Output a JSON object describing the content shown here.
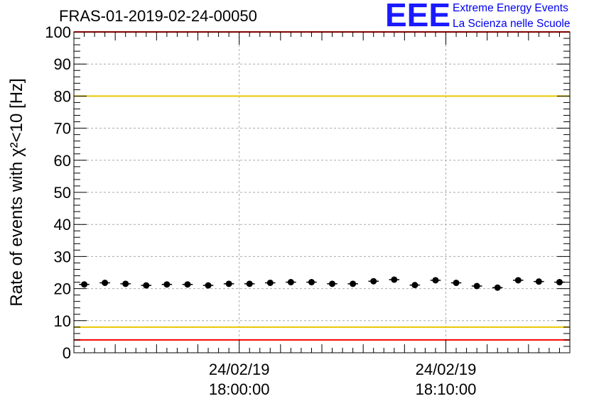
{
  "header": {
    "title": "FRAS-01-2019-02-24-00050",
    "logo_text": "EEE",
    "logo_line1": "Extreme Energy Events",
    "logo_line2": "La Scienza nelle Scuole"
  },
  "colors": {
    "limit_red": "#ff0000",
    "limit_yellow": "#e8c800",
    "points": "#000000",
    "grid": "#999999",
    "logo": "#1a1aff"
  },
  "chart_data": {
    "type": "scatter",
    "title": "FRAS-01-2019-02-24-00050",
    "ylabel": "Rate of events with χ²<10 [Hz]",
    "ylim": [
      0,
      100
    ],
    "yticks": [
      0,
      10,
      20,
      30,
      40,
      50,
      60,
      70,
      80,
      90,
      100
    ],
    "xlim": [
      "2019-02-24 17:52:00",
      "2019-02-24 18:16:00"
    ],
    "xtick_labels": [
      {
        "date": "24/02/19",
        "time": "18:00:00"
      },
      {
        "date": "24/02/19",
        "time": "18:10:00"
      }
    ],
    "grid": true,
    "reference_lines": [
      {
        "y": 100,
        "color": "red"
      },
      {
        "y": 80,
        "color": "yellow"
      },
      {
        "y": 8,
        "color": "yellow"
      },
      {
        "y": 4,
        "color": "red"
      }
    ],
    "series": [
      {
        "x": [
          "17:52:30",
          "17:53:30",
          "17:54:30",
          "17:55:30",
          "17:56:30",
          "17:57:30",
          "17:58:30",
          "17:59:30",
          "18:00:30",
          "18:01:30",
          "18:02:30",
          "18:03:30",
          "18:04:30",
          "18:05:30",
          "18:06:30",
          "18:07:30",
          "18:08:30",
          "18:09:30",
          "18:10:30",
          "18:11:30",
          "18:12:30",
          "18:13:30",
          "18:14:30",
          "18:15:30"
        ],
        "y": [
          21.3,
          21.8,
          21.5,
          21.0,
          21.3,
          21.3,
          21.0,
          21.5,
          21.5,
          21.8,
          22.0,
          22.0,
          21.5,
          21.5,
          22.3,
          22.8,
          21.1,
          22.6,
          21.8,
          20.8,
          20.3,
          22.6,
          22.2,
          22.0
        ]
      }
    ]
  }
}
